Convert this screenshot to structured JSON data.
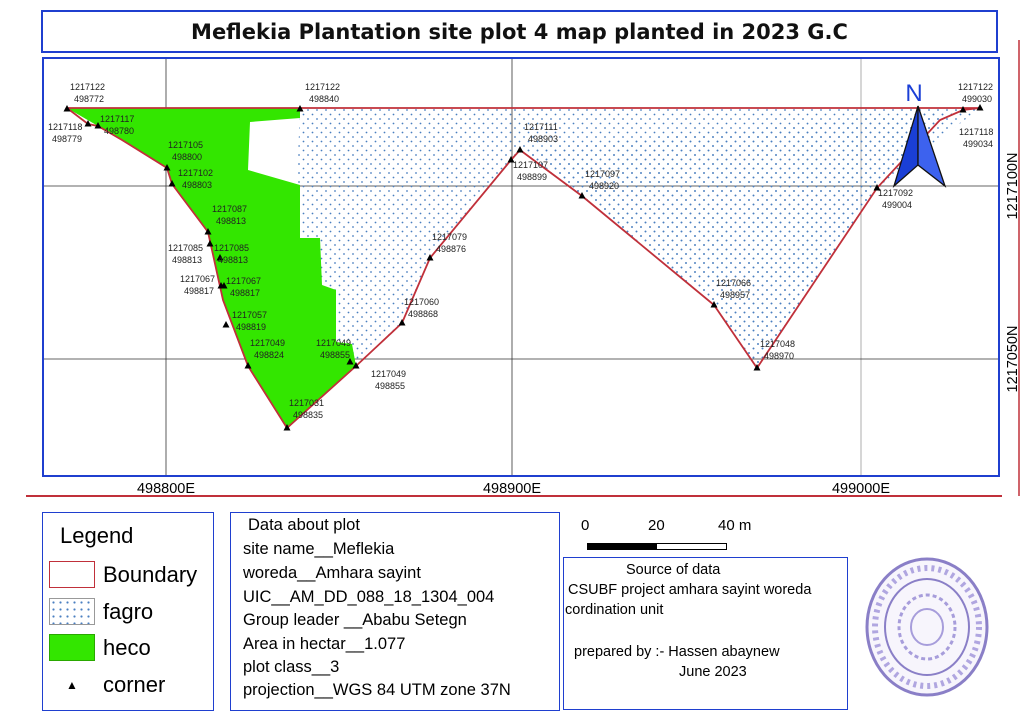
{
  "title": "Meflekia Plantation site plot 4 map planted in 2023 G.C",
  "colors": {
    "boundary": "#c0303a",
    "fagro_dot": "#4a7fc0",
    "heco": "#33e600",
    "frame": "#1f3fcf",
    "north_arrow": "#1a3fd6"
  },
  "map": {
    "north_label": "N",
    "x_ticks": [
      "498800E",
      "498900E",
      "499000E"
    ],
    "y_ticks": [
      "1217100N",
      "1217050N"
    ],
    "corners": [
      {
        "n": "1217122",
        "e": "498772"
      },
      {
        "n": "1217118",
        "e": "498779"
      },
      {
        "n": "1217117",
        "e": "498780"
      },
      {
        "n": "1217122",
        "e": "498840"
      },
      {
        "n": "1217105",
        "e": "498800"
      },
      {
        "n": "1217102",
        "e": "498803"
      },
      {
        "n": "1217087",
        "e": "498813"
      },
      {
        "n": "1217085",
        "e": "498813"
      },
      {
        "n": "1217085",
        "e": "498813"
      },
      {
        "n": "1217067",
        "e": "498817"
      },
      {
        "n": "1217067",
        "e": "498817"
      },
      {
        "n": "1217057",
        "e": "498819"
      },
      {
        "n": "1217049",
        "e": "498824"
      },
      {
        "n": "1217049",
        "e": "498855"
      },
      {
        "n": "1217049",
        "e": "498855"
      },
      {
        "n": "1217031",
        "e": "498835"
      },
      {
        "n": "1217060",
        "e": "498868"
      },
      {
        "n": "1217079",
        "e": "498876"
      },
      {
        "n": "1217107",
        "e": "498899"
      },
      {
        "n": "1217111",
        "e": "498903"
      },
      {
        "n": "1217097",
        "e": "498920"
      },
      {
        "n": "1217066",
        "e": "498957"
      },
      {
        "n": "1217048",
        "e": "498970"
      },
      {
        "n": "1217092",
        "e": "499004"
      },
      {
        "n": "1217118",
        "e": "499034"
      },
      {
        "n": "1217122",
        "e": "499030"
      }
    ]
  },
  "legend": {
    "title": "Legend",
    "items": [
      {
        "label": "Boundary"
      },
      {
        "label": "fagro"
      },
      {
        "label": "heco"
      },
      {
        "label": "corner"
      }
    ]
  },
  "plot_info": {
    "heading": "Data about plot",
    "lines": [
      "site name__Meflekia",
      "woreda__Amhara sayint",
      "UIC__AM_DD_088_18_1304_004",
      "Group leader __Ababu Setegn",
      "Area in hectar__1.077",
      "plot class__3",
      "projection__WGS 84 UTM zone 37N"
    ]
  },
  "scale": {
    "labels": [
      "0",
      "20",
      "40 m"
    ]
  },
  "source": {
    "heading": "Source of data",
    "line1": "CSUBF project amhara sayint woreda",
    "line2": "cordination unit",
    "prepared": "prepared by :- Hassen abaynew",
    "date": "June 2023"
  }
}
